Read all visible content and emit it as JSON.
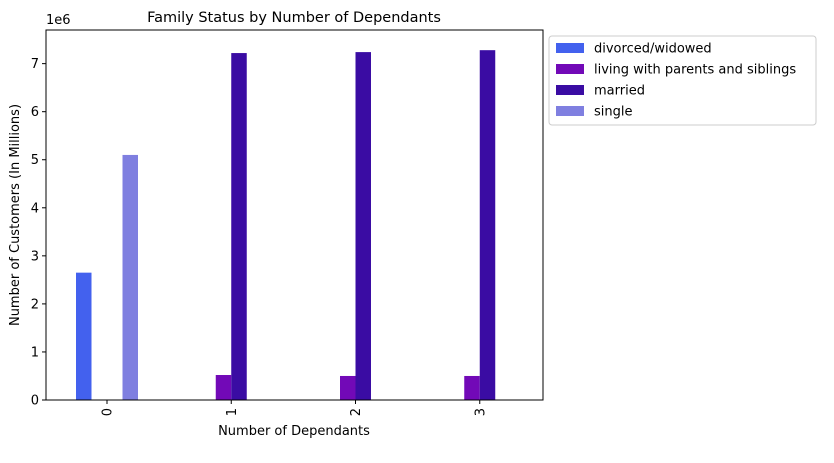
{
  "chart_data": {
    "type": "bar",
    "title": "Family Status by Number of Dependants",
    "xlabel": "Number of Dependants",
    "ylabel": "Number of Customers (In Millions)",
    "y_offset_label": "1e6",
    "categories": [
      "0",
      "1",
      "2",
      "3"
    ],
    "ylim": [
      0,
      7.7
    ],
    "yticks": [
      0,
      1,
      2,
      3,
      4,
      5,
      6,
      7
    ],
    "grid": false,
    "legend_position": "outside-top-right",
    "series": [
      {
        "name": "divorced/widowed",
        "color": "#4361ee",
        "values": [
          2.65,
          0,
          0,
          0
        ]
      },
      {
        "name": "living with parents and siblings",
        "color": "#7209b7",
        "values": [
          0,
          0.52,
          0.5,
          0.5
        ]
      },
      {
        "name": "married",
        "color": "#3a0ca3",
        "values": [
          0,
          7.22,
          7.24,
          7.28
        ]
      },
      {
        "name": "single",
        "color": "#7f7fe0",
        "values": [
          5.1,
          0,
          0,
          0
        ]
      }
    ]
  }
}
